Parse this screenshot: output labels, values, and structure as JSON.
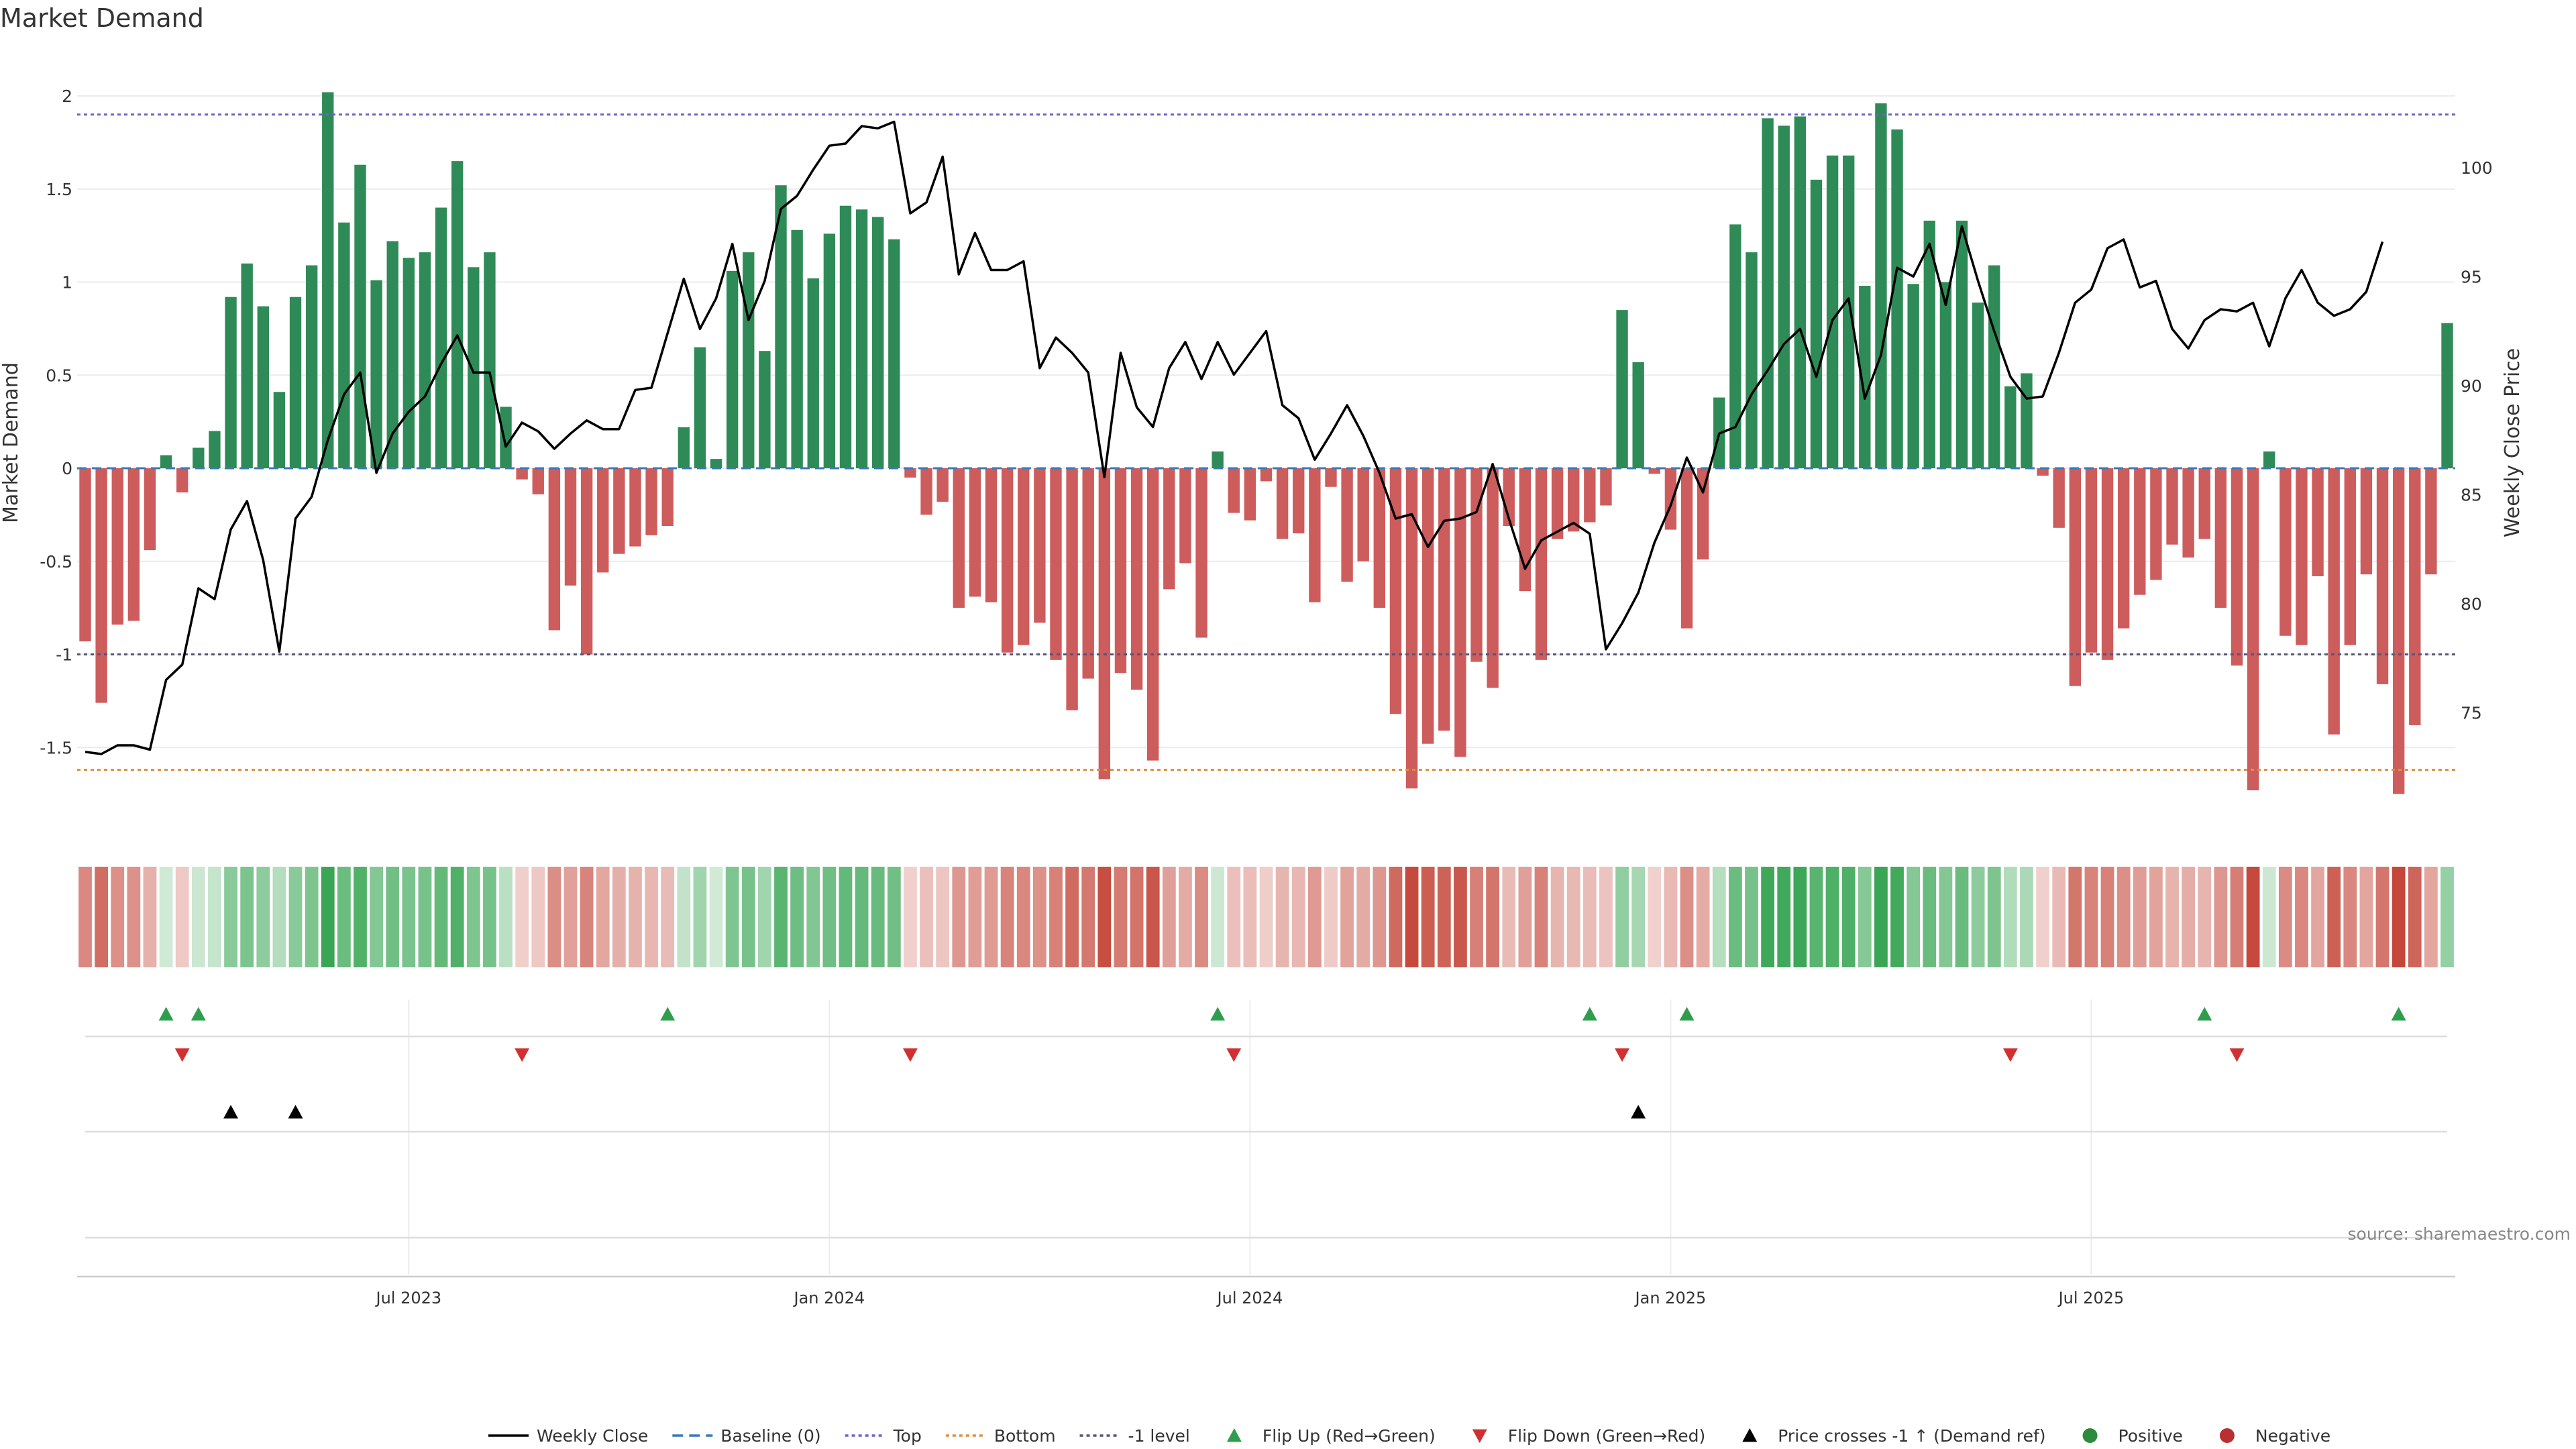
{
  "chart_data": {
    "type": "bar",
    "title": "Market Demand",
    "ylabel": "Market Demand",
    "y2label": "Weekly Close Price",
    "ylim": [
      -1.95,
      2.25
    ],
    "y2lim": [
      71.5,
      102.3
    ],
    "yticks": [
      {
        "v": 2,
        "label": "2"
      },
      {
        "v": 1.5,
        "label": "1.5"
      },
      {
        "v": 1,
        "label": "1"
      },
      {
        "v": 0.5,
        "label": "0.5"
      },
      {
        "v": 0,
        "label": "0"
      },
      {
        "v": -0.5,
        "label": "-0.5"
      },
      {
        "v": -1,
        "label": "-1"
      },
      {
        "v": -1.5,
        "label": "-1.5"
      }
    ],
    "y2ticks": [
      {
        "v": 100,
        "label": "100"
      },
      {
        "v": 95,
        "label": "95"
      },
      {
        "v": 90,
        "label": "90"
      },
      {
        "v": 85,
        "label": "85"
      },
      {
        "v": 80,
        "label": "80"
      },
      {
        "v": 75,
        "label": "75"
      }
    ],
    "xticks": [
      {
        "i": 20,
        "label": "Jul 2023"
      },
      {
        "i": 46,
        "label": "Jan 2024"
      },
      {
        "i": 72,
        "label": "Jul 2024"
      },
      {
        "i": 98,
        "label": "Jan 2025"
      },
      {
        "i": 124,
        "label": "Jul 2025"
      }
    ],
    "levels": {
      "top": 1.9,
      "bottom": -1.62,
      "minus_one": -1
    },
    "demand": [
      -0.93,
      -1.26,
      -0.84,
      -0.82,
      -0.44,
      0.07,
      -0.13,
      0.11,
      0.2,
      0.92,
      1.1,
      0.87,
      0.41,
      0.92,
      1.09,
      2.02,
      1.32,
      1.63,
      1.01,
      1.22,
      1.13,
      1.16,
      1.4,
      1.65,
      1.08,
      1.16,
      0.33,
      -0.06,
      -0.14,
      -0.87,
      -0.63,
      -1.0,
      -0.56,
      -0.46,
      -0.42,
      -0.36,
      -0.31,
      0.22,
      0.65,
      0.05,
      1.06,
      1.16,
      0.63,
      1.52,
      1.28,
      1.02,
      1.26,
      1.41,
      1.39,
      1.35,
      1.23,
      -0.05,
      -0.25,
      -0.18,
      -0.75,
      -0.69,
      -0.72,
      -0.99,
      -0.95,
      -0.83,
      -1.03,
      -1.3,
      -1.13,
      -1.67,
      -1.1,
      -1.19,
      -1.57,
      -0.65,
      -0.51,
      -0.91,
      0.09,
      -0.24,
      -0.28,
      -0.07,
      -0.38,
      -0.35,
      -0.72,
      -0.1,
      -0.61,
      -0.5,
      -0.75,
      -1.32,
      -1.72,
      -1.48,
      -1.41,
      -1.55,
      -1.04,
      -1.18,
      -0.31,
      -0.66,
      -1.03,
      -0.38,
      -0.34,
      -0.29,
      -0.2,
      0.85,
      0.57,
      -0.03,
      -0.33,
      -0.86,
      -0.49,
      0.38,
      1.31,
      1.16,
      1.88,
      1.84,
      1.89,
      1.55,
      1.68,
      1.68,
      0.98,
      1.96,
      1.82,
      0.99,
      1.33,
      1.0,
      1.33,
      0.89,
      1.09,
      0.44,
      0.51,
      -0.04,
      -0.32,
      -1.17,
      -0.99,
      -1.03,
      -0.86,
      -0.68,
      -0.6,
      -0.41,
      -0.48,
      -0.38,
      -0.75,
      -1.06,
      -1.73,
      0.09,
      -0.9,
      -0.95,
      -0.58,
      -1.43,
      -0.95,
      -0.57,
      -1.16,
      -1.75,
      -1.38,
      -0.57,
      0.78
    ],
    "weekly_close": [
      73.2,
      73.1,
      73.5,
      73.5,
      73.3,
      76.5,
      77.2,
      80.7,
      80.2,
      83.4,
      84.7,
      82.0,
      77.8,
      83.9,
      84.9,
      87.5,
      89.6,
      90.6,
      86.0,
      87.8,
      88.8,
      89.5,
      91.0,
      92.3,
      90.6,
      90.6,
      87.2,
      88.3,
      87.9,
      87.1,
      87.8,
      88.4,
      88.0,
      88.0,
      89.8,
      89.9,
      92.4,
      94.9,
      92.6,
      94.0,
      96.5,
      93.0,
      94.8,
      98.1,
      98.7,
      99.9,
      101.0,
      101.1,
      101.9,
      101.8,
      102.1,
      97.9,
      98.4,
      100.5,
      95.1,
      97.0,
      95.3,
      95.3,
      95.7,
      90.8,
      92.2,
      91.5,
      90.6,
      85.8,
      91.5,
      89.0,
      88.1,
      90.8,
      92.0,
      90.3,
      92.0,
      90.5,
      91.5,
      92.5,
      89.1,
      88.5,
      86.6,
      87.8,
      89.1,
      87.7,
      86.0,
      83.9,
      84.1,
      82.6,
      83.8,
      83.9,
      84.2,
      86.4,
      83.9,
      81.6,
      82.9,
      83.3,
      83.7,
      83.2,
      77.9,
      79.1,
      80.5,
      82.8,
      84.5,
      86.7,
      85.1,
      87.8,
      88.1,
      89.6,
      90.7,
      91.9,
      92.6,
      90.4,
      93.0,
      94.0,
      89.4,
      91.4,
      95.4,
      95.0,
      96.5,
      93.7,
      97.3,
      94.8,
      92.5,
      90.4,
      89.4,
      89.5,
      91.5,
      93.8,
      94.4,
      96.3,
      96.7,
      94.5,
      94.8,
      92.6,
      91.7,
      93.0,
      93.5,
      93.4,
      93.8,
      91.8,
      94.0,
      95.3,
      93.8,
      93.2,
      93.5,
      94.3,
      96.6
    ],
    "flip_up": [
      5,
      7,
      36,
      70,
      93,
      99,
      131,
      143
    ],
    "flip_down": [
      6,
      27,
      51,
      71,
      95,
      119,
      133
    ],
    "price_cross": [
      9,
      13,
      96
    ],
    "legend": [
      {
        "label": "Weekly Close",
        "kind": "line",
        "color": "#000000"
      },
      {
        "label": "Baseline (0)",
        "kind": "dash",
        "color": "#3a78b8"
      },
      {
        "label": "Top",
        "kind": "dot",
        "color": "#6f63c8"
      },
      {
        "label": "Bottom",
        "kind": "dot",
        "color": "#e0903a"
      },
      {
        "label": "-1 level",
        "kind": "dot",
        "color": "#555577"
      },
      {
        "label": "Flip Up (Red→Green)",
        "kind": "tri-up",
        "color": "#2e9e4e"
      },
      {
        "label": "Flip Down (Green→Red)",
        "kind": "tri-down",
        "color": "#d03030"
      },
      {
        "label": "Price crosses -1 ↑ (Demand ref)",
        "kind": "tri-up",
        "color": "#000000"
      },
      {
        "label": "Positive",
        "kind": "circle",
        "color": "#2e8b3e"
      },
      {
        "label": "Negative",
        "kind": "circle",
        "color": "#b83030"
      }
    ],
    "colors": {
      "positive": "#2e8b57",
      "negative": "#cd5c5c",
      "line": "#000000",
      "heat_pos": "#3aa655",
      "heat_neg": "#c0392b"
    }
  },
  "source": "source: sharemaestro.com"
}
